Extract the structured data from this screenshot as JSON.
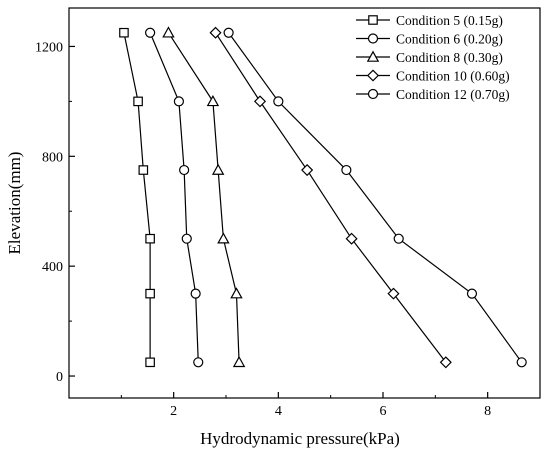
{
  "chart_data": {
    "type": "line",
    "title": "",
    "xlabel": "Hydrodynamic pressure(kPa)",
    "ylabel": "Elevation(mm)",
    "xlim": [
      0,
      9
    ],
    "ylim": [
      -80,
      1340
    ],
    "xticks": [
      2,
      4,
      6,
      8
    ],
    "yticks": [
      0,
      400,
      800,
      1200
    ],
    "xtick_labels": [
      "2",
      "4",
      "6",
      "8"
    ],
    "ytick_labels": [
      "0",
      "400",
      "800",
      "1200"
    ],
    "grid": false,
    "legend_position": "top-right",
    "series": [
      {
        "name": "Condition 5 (0.15g)",
        "marker": "square",
        "x": [
          1.05,
          1.32,
          1.42,
          1.55,
          1.55,
          1.55
        ],
        "y": [
          1250,
          1000,
          750,
          500,
          300,
          50
        ]
      },
      {
        "name": "Condition 6 (0.20g)",
        "marker": "circle",
        "x": [
          1.55,
          2.1,
          2.2,
          2.25,
          2.42,
          2.47
        ],
        "y": [
          1250,
          1000,
          750,
          500,
          300,
          50
        ]
      },
      {
        "name": "Condition 8 (0.30g)",
        "marker": "triangle",
        "x": [
          1.9,
          2.75,
          2.85,
          2.95,
          3.2,
          3.25
        ],
        "y": [
          1250,
          1000,
          750,
          500,
          300,
          50
        ]
      },
      {
        "name": "Condition 10 (0.60g)",
        "marker": "diamond",
        "x": [
          2.8,
          3.65,
          4.55,
          5.4,
          6.2,
          7.2
        ],
        "y": [
          1250,
          1000,
          750,
          500,
          300,
          50
        ]
      },
      {
        "name": "Condition 12 (0.70g)",
        "marker": "circle",
        "x": [
          3.05,
          4.0,
          5.3,
          6.3,
          7.7,
          8.65
        ],
        "y": [
          1250,
          1000,
          750,
          500,
          300,
          50
        ]
      }
    ]
  }
}
